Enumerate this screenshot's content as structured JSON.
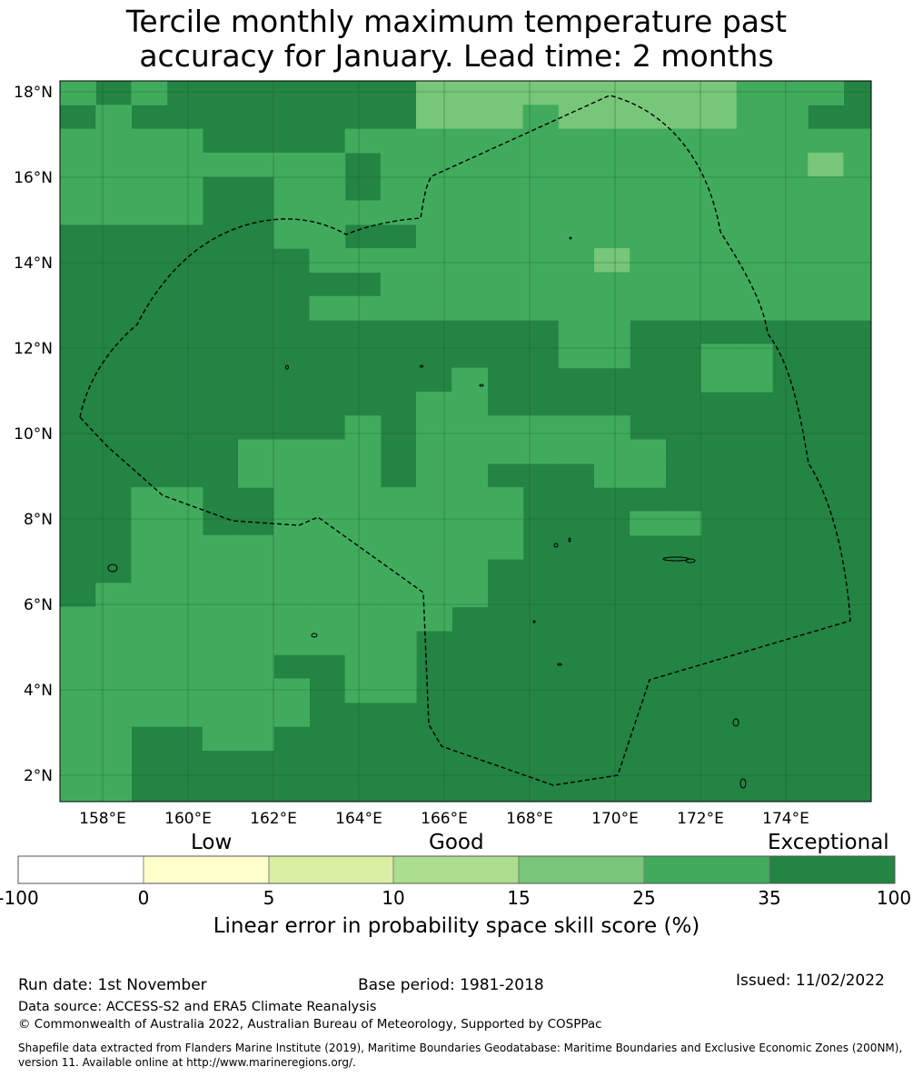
{
  "title": {
    "line1": "Tercile monthly maximum temperature past",
    "line2": "accuracy for January. Lead time: 2 months"
  },
  "map": {
    "lon_range": [
      157.0,
      176.0
    ],
    "lat_range": [
      1.4,
      18.3
    ],
    "grid_cell_deg": 0.833,
    "lat_labels": [
      "18°N",
      "16°N",
      "14°N",
      "12°N",
      "10°N",
      "8°N",
      "6°N",
      "4°N",
      "2°N"
    ],
    "lon_labels": [
      "158°E",
      "160°E",
      "162°E",
      "164°E",
      "166°E",
      "168°E",
      "170°E",
      "172°E",
      "174°E"
    ],
    "base_category": "35-100",
    "boundary": "EEZ (dashed)"
  },
  "colorbar": {
    "qualitative_labels": [
      "Low",
      "Good",
      "Exceptional"
    ],
    "ticks": [
      "-100",
      "0",
      "5",
      "10",
      "15",
      "25",
      "35",
      "100"
    ],
    "colors": [
      "#ffffff",
      "#ffffcc",
      "#d9f0a3",
      "#addd8e",
      "#78c679",
      "#41ab5d",
      "#238443"
    ],
    "label": "Linear error in probability space skill score (%)"
  },
  "footer": {
    "run_date": "Run date: 1st November",
    "base_period": "Base period: 1981-2018",
    "issued": "Issued: 11/02/2022",
    "data_source": "Data source: ACCESS-S2 and ERA5 Climate Reanalysis",
    "copyright": "© Commonwealth of Australia 2022, Australian Bureau of Meteorology, Supported by COSPPac",
    "shapefile_line1": "Shapefile data extracted from Flanders Marine Institute (2019), Maritime Boundaries Geodatabase: Maritime Boundaries and Exclusive Economic Zones (200NM),",
    "shapefile_line2": "version 11. Available online at http://www.marineregions.org/."
  }
}
